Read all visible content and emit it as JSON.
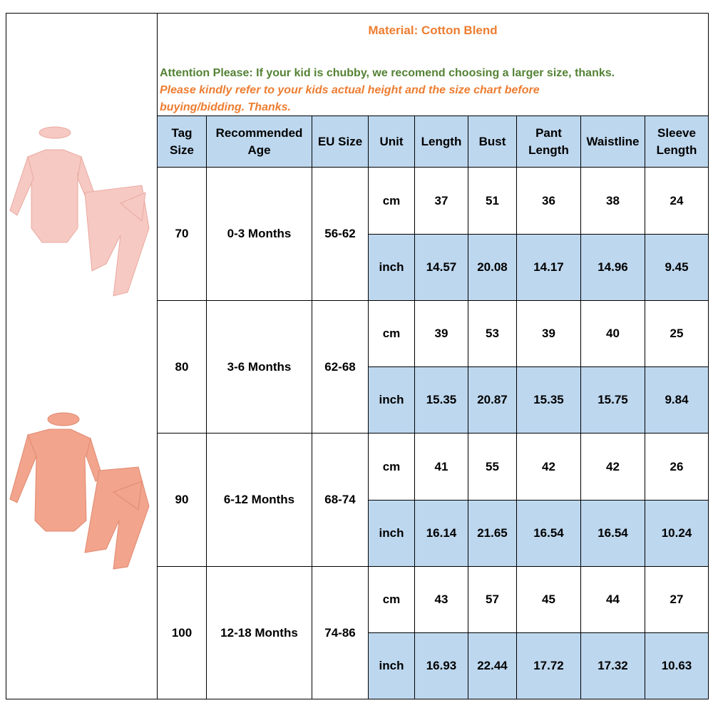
{
  "notes": {
    "material": "Material: Cotton Blend",
    "attention": "Attention Please: If your kid is chubby, we recomend choosing a larger size,  thanks.",
    "refer": "Please kindly refer to your kids actual height and the size chart before buying/bidding. Thanks."
  },
  "table": {
    "header": [
      "Tag Size",
      "Recommended Age",
      "EU Size",
      "Unit",
      "Length",
      "Bust",
      "Pant Length",
      "Waistline",
      "Sleeve Length"
    ],
    "groups": [
      {
        "tag": "70",
        "age": "0-3 Months",
        "eu": "56-62",
        "rows": [
          {
            "unit": "cm",
            "values": [
              "37",
              "51",
              "36",
              "38",
              "24"
            ]
          },
          {
            "unit": "inch",
            "values": [
              "14.57",
              "20.08",
              "14.17",
              "14.96",
              "9.45"
            ]
          }
        ]
      },
      {
        "tag": "80",
        "age": "3-6 Months",
        "eu": "62-68",
        "rows": [
          {
            "unit": "cm",
            "values": [
              "39",
              "53",
              "39",
              "40",
              "25"
            ]
          },
          {
            "unit": "inch",
            "values": [
              "15.35",
              "20.87",
              "15.35",
              "15.75",
              "9.84"
            ]
          }
        ]
      },
      {
        "tag": "90",
        "age": "6-12 Months",
        "eu": "68-74",
        "rows": [
          {
            "unit": "cm",
            "values": [
              "41",
              "55",
              "42",
              "42",
              "26"
            ]
          },
          {
            "unit": "inch",
            "values": [
              "16.14",
              "21.65",
              "16.54",
              "16.54",
              "10.24"
            ]
          }
        ]
      },
      {
        "tag": "100",
        "age": "12-18 Months",
        "eu": "74-86",
        "rows": [
          {
            "unit": "cm",
            "values": [
              "43",
              "57",
              "45",
              "44",
              "27"
            ]
          },
          {
            "unit": "inch",
            "values": [
              "16.93",
              "22.44",
              "17.72",
              "17.32",
              "10.63"
            ]
          }
        ]
      }
    ]
  }
}
